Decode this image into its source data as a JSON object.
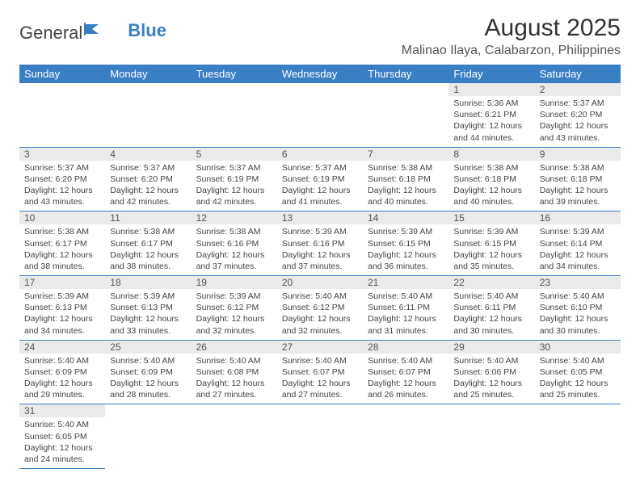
{
  "logo": {
    "text1": "General",
    "text2": "Blue"
  },
  "title": "August 2025",
  "location": "Malinao Ilaya, Calabarzon, Philippines",
  "dayHeaders": [
    "Sunday",
    "Monday",
    "Tuesday",
    "Wednesday",
    "Thursday",
    "Friday",
    "Saturday"
  ],
  "colors": {
    "header_bg": "#3a7fc4",
    "header_fg": "#ffffff",
    "daynum_bg": "#eaeaea",
    "border": "#3a7fc4",
    "text": "#444444",
    "logo_blue": "#3a7fc4"
  },
  "grid": [
    [
      null,
      null,
      null,
      null,
      null,
      {
        "n": "1",
        "sr": "5:36 AM",
        "ss": "6:21 PM",
        "dl": "12 hours and 44 minutes."
      },
      {
        "n": "2",
        "sr": "5:37 AM",
        "ss": "6:20 PM",
        "dl": "12 hours and 43 minutes."
      }
    ],
    [
      {
        "n": "3",
        "sr": "5:37 AM",
        "ss": "6:20 PM",
        "dl": "12 hours and 43 minutes."
      },
      {
        "n": "4",
        "sr": "5:37 AM",
        "ss": "6:20 PM",
        "dl": "12 hours and 42 minutes."
      },
      {
        "n": "5",
        "sr": "5:37 AM",
        "ss": "6:19 PM",
        "dl": "12 hours and 42 minutes."
      },
      {
        "n": "6",
        "sr": "5:37 AM",
        "ss": "6:19 PM",
        "dl": "12 hours and 41 minutes."
      },
      {
        "n": "7",
        "sr": "5:38 AM",
        "ss": "6:18 PM",
        "dl": "12 hours and 40 minutes."
      },
      {
        "n": "8",
        "sr": "5:38 AM",
        "ss": "6:18 PM",
        "dl": "12 hours and 40 minutes."
      },
      {
        "n": "9",
        "sr": "5:38 AM",
        "ss": "6:18 PM",
        "dl": "12 hours and 39 minutes."
      }
    ],
    [
      {
        "n": "10",
        "sr": "5:38 AM",
        "ss": "6:17 PM",
        "dl": "12 hours and 38 minutes."
      },
      {
        "n": "11",
        "sr": "5:38 AM",
        "ss": "6:17 PM",
        "dl": "12 hours and 38 minutes."
      },
      {
        "n": "12",
        "sr": "5:38 AM",
        "ss": "6:16 PM",
        "dl": "12 hours and 37 minutes."
      },
      {
        "n": "13",
        "sr": "5:39 AM",
        "ss": "6:16 PM",
        "dl": "12 hours and 37 minutes."
      },
      {
        "n": "14",
        "sr": "5:39 AM",
        "ss": "6:15 PM",
        "dl": "12 hours and 36 minutes."
      },
      {
        "n": "15",
        "sr": "5:39 AM",
        "ss": "6:15 PM",
        "dl": "12 hours and 35 minutes."
      },
      {
        "n": "16",
        "sr": "5:39 AM",
        "ss": "6:14 PM",
        "dl": "12 hours and 34 minutes."
      }
    ],
    [
      {
        "n": "17",
        "sr": "5:39 AM",
        "ss": "6:13 PM",
        "dl": "12 hours and 34 minutes."
      },
      {
        "n": "18",
        "sr": "5:39 AM",
        "ss": "6:13 PM",
        "dl": "12 hours and 33 minutes."
      },
      {
        "n": "19",
        "sr": "5:39 AM",
        "ss": "6:12 PM",
        "dl": "12 hours and 32 minutes."
      },
      {
        "n": "20",
        "sr": "5:40 AM",
        "ss": "6:12 PM",
        "dl": "12 hours and 32 minutes."
      },
      {
        "n": "21",
        "sr": "5:40 AM",
        "ss": "6:11 PM",
        "dl": "12 hours and 31 minutes."
      },
      {
        "n": "22",
        "sr": "5:40 AM",
        "ss": "6:11 PM",
        "dl": "12 hours and 30 minutes."
      },
      {
        "n": "23",
        "sr": "5:40 AM",
        "ss": "6:10 PM",
        "dl": "12 hours and 30 minutes."
      }
    ],
    [
      {
        "n": "24",
        "sr": "5:40 AM",
        "ss": "6:09 PM",
        "dl": "12 hours and 29 minutes."
      },
      {
        "n": "25",
        "sr": "5:40 AM",
        "ss": "6:09 PM",
        "dl": "12 hours and 28 minutes."
      },
      {
        "n": "26",
        "sr": "5:40 AM",
        "ss": "6:08 PM",
        "dl": "12 hours and 27 minutes."
      },
      {
        "n": "27",
        "sr": "5:40 AM",
        "ss": "6:07 PM",
        "dl": "12 hours and 27 minutes."
      },
      {
        "n": "28",
        "sr": "5:40 AM",
        "ss": "6:07 PM",
        "dl": "12 hours and 26 minutes."
      },
      {
        "n": "29",
        "sr": "5:40 AM",
        "ss": "6:06 PM",
        "dl": "12 hours and 25 minutes."
      },
      {
        "n": "30",
        "sr": "5:40 AM",
        "ss": "6:05 PM",
        "dl": "12 hours and 25 minutes."
      }
    ],
    [
      {
        "n": "31",
        "sr": "5:40 AM",
        "ss": "6:05 PM",
        "dl": "12 hours and 24 minutes."
      },
      null,
      null,
      null,
      null,
      null,
      null
    ]
  ],
  "labels": {
    "sunrise": "Sunrise:",
    "sunset": "Sunset:",
    "daylight": "Daylight:"
  }
}
